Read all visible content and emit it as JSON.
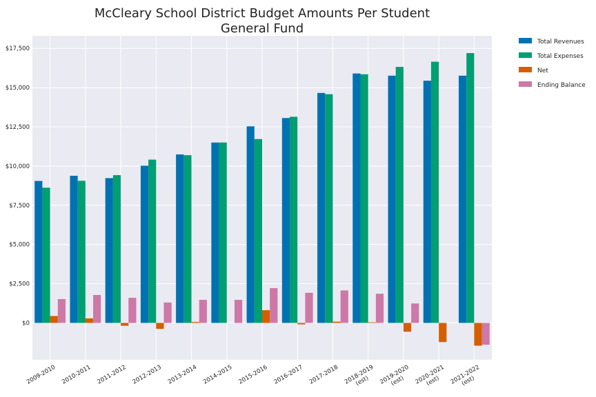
{
  "chart_data": {
    "type": "bar",
    "title_lines": [
      "McCleary School District Budget Amounts Per Student",
      "General Fund"
    ],
    "categories": [
      [
        "2009-2010"
      ],
      [
        "2010-2011"
      ],
      [
        "2011-2012"
      ],
      [
        "2012-2013"
      ],
      [
        "2013-2014"
      ],
      [
        "2014-2015"
      ],
      [
        "2015-2016"
      ],
      [
        "2016-2017"
      ],
      [
        "2017-2018"
      ],
      [
        "2018-2019",
        "(est)"
      ],
      [
        "2019-2020",
        "(est)"
      ],
      [
        "2020-2021",
        "(est)"
      ],
      [
        "2021-2022",
        "(est)"
      ]
    ],
    "series": [
      {
        "name": "Total Revenues",
        "color": "#0072b2",
        "values": [
          9050,
          9380,
          9230,
          10020,
          10740,
          11500,
          12530,
          13060,
          14660,
          15900,
          15760,
          15440,
          15760
        ]
      },
      {
        "name": "Total Expenses",
        "color": "#009e73",
        "values": [
          8620,
          9060,
          9420,
          10410,
          10690,
          11500,
          11720,
          13140,
          14580,
          15850,
          16320,
          16650,
          17200
        ]
      },
      {
        "name": "Net",
        "color": "#d55e00",
        "values": [
          440,
          290,
          -180,
          -380,
          60,
          0,
          810,
          -90,
          80,
          40,
          -560,
          -1220,
          -1450
        ]
      },
      {
        "name": "Ending Balance",
        "color": "#cc79a7",
        "values": [
          1520,
          1780,
          1600,
          1300,
          1470,
          1470,
          2220,
          1920,
          2070,
          1860,
          1240,
          0,
          -1390
        ]
      }
    ],
    "yticks": [
      0,
      2500,
      5000,
      7500,
      10000,
      12500,
      15000,
      17500
    ],
    "ytick_labels": [
      "$0",
      "$2,500",
      "$5,000",
      "$7,500",
      "$10,000",
      "$12,500",
      "$15,000",
      "$17,500"
    ],
    "ylim": [
      -2350,
      18300
    ],
    "grid": true,
    "legend_position": "outside-top-right",
    "background": "#eaeaf2"
  }
}
